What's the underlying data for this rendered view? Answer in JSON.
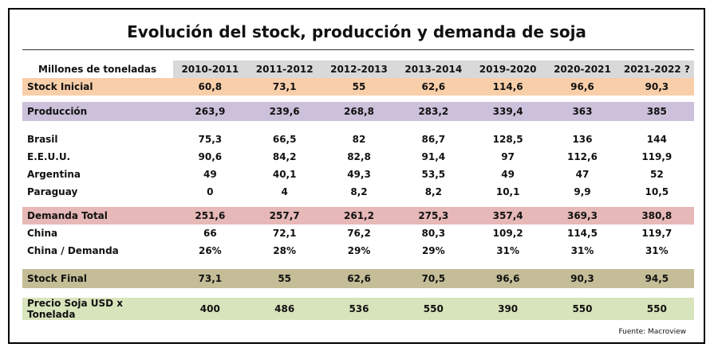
{
  "title": "Evolución del  stock, producción y demanda  de  soja",
  "table": {
    "header_label": "Millones de toneladas",
    "columns": [
      "2010-2011",
      "2011-2012",
      "2012-2013",
      "2013-2014",
      "2019-2020",
      "2020-2021",
      "2021-2022 ?"
    ],
    "rows": {
      "stock_inicial": {
        "label": "Stock Inicial",
        "values": [
          "60,8",
          "73,1",
          "55",
          "62,6",
          "114,6",
          "96,6",
          "90,3"
        ]
      },
      "produccion": {
        "label": "Producción",
        "values": [
          "263,9",
          "239,6",
          "268,8",
          "283,2",
          "339,4",
          "363",
          "385"
        ]
      },
      "brasil": {
        "label": "Brasil",
        "values": [
          "75,3",
          "66,5",
          "82",
          "86,7",
          "128,5",
          "136",
          "144"
        ]
      },
      "eeuu": {
        "label": "E.E.U.U.",
        "values": [
          "90,6",
          "84,2",
          "82,8",
          "91,4",
          "97",
          "112,6",
          "119,9"
        ]
      },
      "argentina": {
        "label": "Argentina",
        "values": [
          "49",
          "40,1",
          "49,3",
          "53,5",
          "49",
          "47",
          "52"
        ]
      },
      "paraguay": {
        "label": "Paraguay",
        "values": [
          "0",
          "4",
          "8,2",
          "8,2",
          "10,1",
          "9,9",
          "10,5"
        ]
      },
      "demanda_total": {
        "label": "Demanda Total",
        "values": [
          "251,6",
          "257,7",
          "261,2",
          "275,3",
          "357,4",
          "369,3",
          "380,8"
        ]
      },
      "china": {
        "label": "China",
        "values": [
          "66",
          "72,1",
          "76,2",
          "80,3",
          "109,2",
          "114,5",
          "119,7"
        ]
      },
      "china_demanda": {
        "label": "China / Demanda",
        "values": [
          "26%",
          "28%",
          "29%",
          "29%",
          "31%",
          "31%",
          "31%"
        ]
      },
      "stock_final": {
        "label": "Stock Final",
        "values": [
          "73,1",
          "55",
          "62,6",
          "70,5",
          "96,6",
          "90,3",
          "94,5"
        ]
      },
      "precio": {
        "label": "Precio Soja USD x Tonelada",
        "values": [
          "400",
          "486",
          "536",
          "550",
          "390",
          "550",
          "550"
        ]
      }
    }
  },
  "source": "Fuente: Macroview"
}
